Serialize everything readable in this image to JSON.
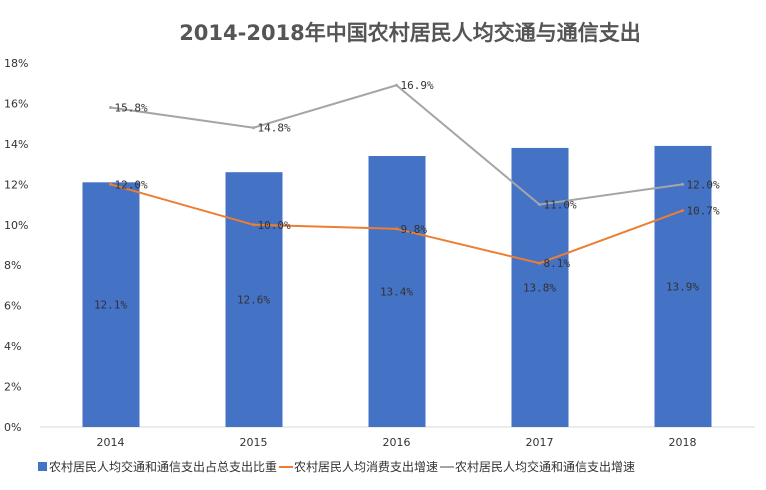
{
  "chart_data": {
    "type": "bar+line",
    "title": "2014-2018年中国农村居民人均交通与通信支出",
    "categories": [
      "2014",
      "2015",
      "2016",
      "2017",
      "2018"
    ],
    "ylim": [
      0,
      18
    ],
    "yticks": [
      "0%",
      "2%",
      "4%",
      "6%",
      "8%",
      "10%",
      "12%",
      "14%",
      "16%",
      "18%"
    ],
    "grid": false,
    "legend_position": "bottom",
    "series": [
      {
        "name": "农村居民人均交通和通信支出占总支出比重",
        "type": "bar",
        "color": "#4472C4",
        "values": [
          12.1,
          12.6,
          13.4,
          13.8,
          13.9
        ],
        "labels": [
          "12.1%",
          "12.6%",
          "13.4%",
          "13.8%",
          "13.9%"
        ]
      },
      {
        "name": "农村居民人均消费支出增速",
        "type": "line",
        "color": "#ED7D31",
        "values": [
          12.0,
          10.0,
          9.8,
          8.1,
          10.7
        ],
        "labels": [
          "12.0%",
          "10.0%",
          "9.8%",
          "8.1%",
          "10.7%"
        ]
      },
      {
        "name": "农村居民人均交通和通信支出增速",
        "type": "line",
        "color": "#A5A5A5",
        "values": [
          15.8,
          14.8,
          16.9,
          11.0,
          12.0
        ],
        "labels": [
          "15.8%",
          "14.8%",
          "16.9%",
          "11.0%",
          "12.0%"
        ]
      }
    ]
  }
}
